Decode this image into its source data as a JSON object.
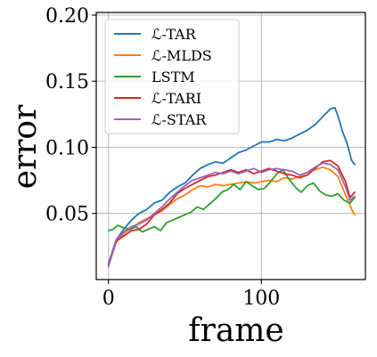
{
  "chart_data": {
    "type": "line",
    "xlabel": "frame",
    "ylabel": "error",
    "xlim": [
      -8,
      168
    ],
    "ylim": [
      0.0,
      0.202
    ],
    "x_ticks": [
      0,
      100
    ],
    "x_tick_labels": [
      "0",
      "100"
    ],
    "y_ticks": [
      0.05,
      0.1,
      0.15,
      0.2
    ],
    "y_tick_labels": [
      "0.05",
      "0.10",
      "0.15",
      "0.20"
    ],
    "grid": true,
    "legend_position": "upper-left",
    "series": [
      {
        "name": "ℒ-TAR",
        "color": "#1f77b4",
        "points": [
          [
            0,
            0.012
          ],
          [
            5,
            0.03
          ],
          [
            10,
            0.038
          ],
          [
            15,
            0.045
          ],
          [
            20,
            0.05
          ],
          [
            25,
            0.053
          ],
          [
            30,
            0.058
          ],
          [
            35,
            0.06
          ],
          [
            40,
            0.066
          ],
          [
            45,
            0.07
          ],
          [
            50,
            0.073
          ],
          [
            55,
            0.079
          ],
          [
            60,
            0.084
          ],
          [
            65,
            0.087
          ],
          [
            70,
            0.089
          ],
          [
            75,
            0.088
          ],
          [
            80,
            0.092
          ],
          [
            85,
            0.096
          ],
          [
            90,
            0.098
          ],
          [
            95,
            0.101
          ],
          [
            100,
            0.104
          ],
          [
            105,
            0.104
          ],
          [
            110,
            0.106
          ],
          [
            115,
            0.105
          ],
          [
            120,
            0.107
          ],
          [
            125,
            0.11
          ],
          [
            130,
            0.113
          ],
          [
            135,
            0.117
          ],
          [
            140,
            0.123
          ],
          [
            145,
            0.129
          ],
          [
            148,
            0.13
          ],
          [
            150,
            0.124
          ],
          [
            153,
            0.112
          ],
          [
            156,
            0.103
          ],
          [
            159,
            0.09
          ],
          [
            161,
            0.087
          ]
        ]
      },
      {
        "name": "ℒ-MLDS",
        "color": "#ff7f0e",
        "points": [
          [
            0,
            0.01
          ],
          [
            5,
            0.028
          ],
          [
            10,
            0.035
          ],
          [
            15,
            0.039
          ],
          [
            20,
            0.043
          ],
          [
            25,
            0.046
          ],
          [
            30,
            0.049
          ],
          [
            35,
            0.052
          ],
          [
            40,
            0.057
          ],
          [
            45,
            0.061
          ],
          [
            50,
            0.064
          ],
          [
            55,
            0.068
          ],
          [
            60,
            0.071
          ],
          [
            65,
            0.07
          ],
          [
            70,
            0.072
          ],
          [
            75,
            0.071
          ],
          [
            80,
            0.072
          ],
          [
            85,
            0.073
          ],
          [
            90,
            0.074
          ],
          [
            95,
            0.073
          ],
          [
            100,
            0.074
          ],
          [
            105,
            0.075
          ],
          [
            110,
            0.074
          ],
          [
            115,
            0.077
          ],
          [
            120,
            0.076
          ],
          [
            125,
            0.078
          ],
          [
            130,
            0.081
          ],
          [
            135,
            0.083
          ],
          [
            140,
            0.085
          ],
          [
            145,
            0.083
          ],
          [
            150,
            0.078
          ],
          [
            155,
            0.064
          ],
          [
            159,
            0.053
          ],
          [
            161,
            0.049
          ]
        ]
      },
      {
        "name": "LSTM",
        "color": "#2ca02c",
        "points": [
          [
            0,
            0.037
          ],
          [
            3,
            0.038
          ],
          [
            6,
            0.041
          ],
          [
            10,
            0.039
          ],
          [
            14,
            0.038
          ],
          [
            18,
            0.04
          ],
          [
            22,
            0.036
          ],
          [
            26,
            0.038
          ],
          [
            30,
            0.04
          ],
          [
            34,
            0.037
          ],
          [
            38,
            0.043
          ],
          [
            42,
            0.045
          ],
          [
            46,
            0.047
          ],
          [
            50,
            0.049
          ],
          [
            54,
            0.051
          ],
          [
            58,
            0.055
          ],
          [
            62,
            0.053
          ],
          [
            66,
            0.057
          ],
          [
            70,
            0.061
          ],
          [
            74,
            0.066
          ],
          [
            78,
            0.068
          ],
          [
            82,
            0.072
          ],
          [
            86,
            0.068
          ],
          [
            90,
            0.074
          ],
          [
            94,
            0.071
          ],
          [
            98,
            0.068
          ],
          [
            102,
            0.069
          ],
          [
            106,
            0.074
          ],
          [
            110,
            0.08
          ],
          [
            114,
            0.083
          ],
          [
            118,
            0.076
          ],
          [
            122,
            0.07
          ],
          [
            126,
            0.066
          ],
          [
            130,
            0.071
          ],
          [
            134,
            0.073
          ],
          [
            138,
            0.067
          ],
          [
            142,
            0.064
          ],
          [
            146,
            0.063
          ],
          [
            150,
            0.065
          ],
          [
            154,
            0.06
          ],
          [
            158,
            0.058
          ],
          [
            161,
            0.062
          ]
        ]
      },
      {
        "name": "ℒ-TARI",
        "color": "#d62728",
        "points": [
          [
            0,
            0.011
          ],
          [
            5,
            0.029
          ],
          [
            10,
            0.033
          ],
          [
            15,
            0.037
          ],
          [
            20,
            0.038
          ],
          [
            25,
            0.042
          ],
          [
            30,
            0.049
          ],
          [
            35,
            0.053
          ],
          [
            40,
            0.058
          ],
          [
            45,
            0.065
          ],
          [
            50,
            0.069
          ],
          [
            55,
            0.072
          ],
          [
            60,
            0.075
          ],
          [
            65,
            0.078
          ],
          [
            70,
            0.079
          ],
          [
            75,
            0.081
          ],
          [
            80,
            0.083
          ],
          [
            85,
            0.081
          ],
          [
            90,
            0.083
          ],
          [
            95,
            0.08
          ],
          [
            100,
            0.082
          ],
          [
            105,
            0.084
          ],
          [
            110,
            0.082
          ],
          [
            115,
            0.08
          ],
          [
            120,
            0.079
          ],
          [
            125,
            0.077
          ],
          [
            130,
            0.079
          ],
          [
            135,
            0.084
          ],
          [
            140,
            0.089
          ],
          [
            145,
            0.09
          ],
          [
            150,
            0.086
          ],
          [
            155,
            0.074
          ],
          [
            158,
            0.062
          ],
          [
            161,
            0.066
          ]
        ]
      },
      {
        "name": "ℒ-STAR",
        "color": "#9467bd",
        "points": [
          [
            0,
            0.01
          ],
          [
            5,
            0.03
          ],
          [
            10,
            0.036
          ],
          [
            15,
            0.04
          ],
          [
            20,
            0.042
          ],
          [
            25,
            0.045
          ],
          [
            30,
            0.05
          ],
          [
            35,
            0.055
          ],
          [
            40,
            0.061
          ],
          [
            45,
            0.066
          ],
          [
            50,
            0.071
          ],
          [
            55,
            0.075
          ],
          [
            60,
            0.077
          ],
          [
            65,
            0.079
          ],
          [
            70,
            0.081
          ],
          [
            75,
            0.08
          ],
          [
            80,
            0.082
          ],
          [
            85,
            0.08
          ],
          [
            90,
            0.082
          ],
          [
            95,
            0.084
          ],
          [
            100,
            0.081
          ],
          [
            105,
            0.083
          ],
          [
            110,
            0.084
          ],
          [
            115,
            0.083
          ],
          [
            120,
            0.082
          ],
          [
            125,
            0.079
          ],
          [
            130,
            0.081
          ],
          [
            135,
            0.085
          ],
          [
            140,
            0.088
          ],
          [
            145,
            0.087
          ],
          [
            150,
            0.083
          ],
          [
            155,
            0.07
          ],
          [
            158,
            0.06
          ],
          [
            161,
            0.063
          ]
        ]
      }
    ]
  }
}
